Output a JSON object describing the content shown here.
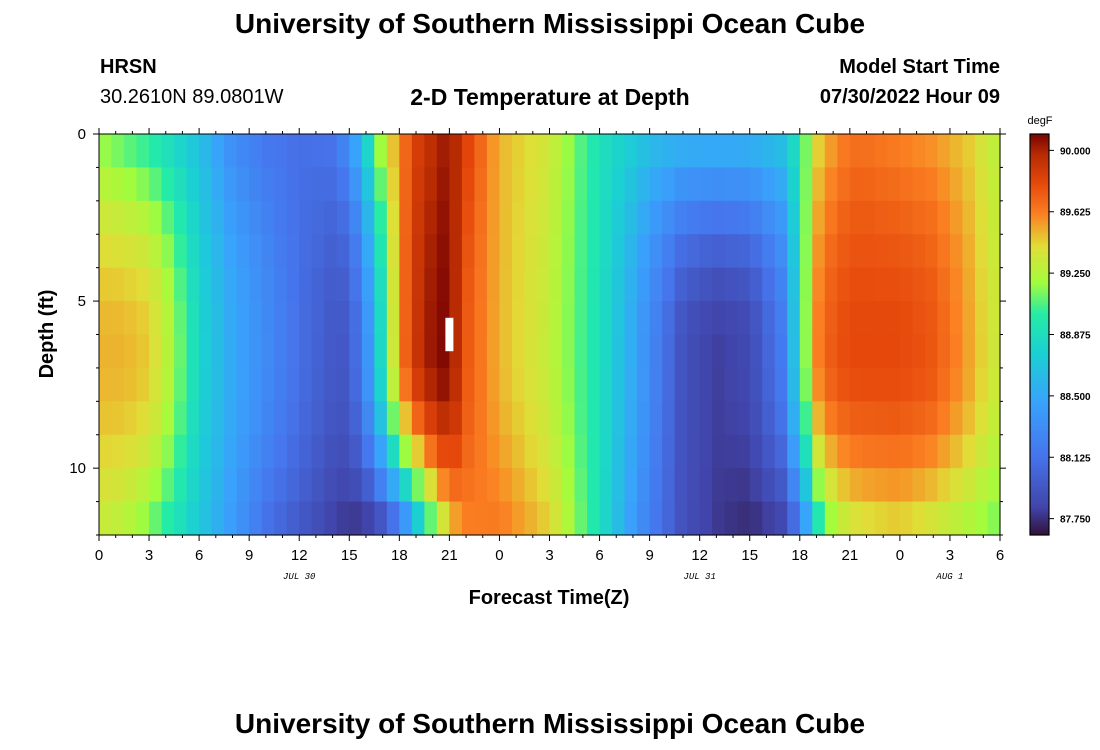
{
  "header": {
    "title": "University of Southern Mississippi Ocean Cube",
    "station": "HRSN",
    "coords": "30.2610N  89.0801W",
    "plot_title": "2-D Temperature at Depth",
    "start_label": "Model Start Time",
    "start_value": "07/30/2022 Hour 09"
  },
  "footer": {
    "title": "University of Southern Mississippi Ocean Cube"
  },
  "colors": {
    "background": "#ffffff",
    "marker": "#ffffff"
  },
  "chart_data": {
    "type": "heatmap",
    "title": "2-D Temperature at Depth",
    "xlabel": "Forecast Time(Z)",
    "ylabel": "Depth (ft)",
    "x_range_hours": [
      0,
      54
    ],
    "x_ticks": [
      {
        "h": 0,
        "label": "0"
      },
      {
        "h": 3,
        "label": "3"
      },
      {
        "h": 6,
        "label": "6"
      },
      {
        "h": 9,
        "label": "9"
      },
      {
        "h": 12,
        "label": "12"
      },
      {
        "h": 15,
        "label": "15"
      },
      {
        "h": 18,
        "label": "18"
      },
      {
        "h": 21,
        "label": "21"
      },
      {
        "h": 24,
        "label": "0"
      },
      {
        "h": 27,
        "label": "3"
      },
      {
        "h": 30,
        "label": "6"
      },
      {
        "h": 33,
        "label": "9"
      },
      {
        "h": 36,
        "label": "12"
      },
      {
        "h": 39,
        "label": "15"
      },
      {
        "h": 42,
        "label": "18"
      },
      {
        "h": 45,
        "label": "21"
      },
      {
        "h": 48,
        "label": "0"
      },
      {
        "h": 51,
        "label": "3"
      },
      {
        "h": 54,
        "label": "6"
      }
    ],
    "date_labels": [
      {
        "h": 12,
        "label": "JUL 30"
      },
      {
        "h": 36,
        "label": "JUL 31"
      },
      {
        "h": 51,
        "label": "AUG 1"
      }
    ],
    "y_range_ft": [
      0,
      12
    ],
    "y_ticks": [
      {
        "d": 0,
        "label": "0"
      },
      {
        "d": 5,
        "label": "5"
      },
      {
        "d": 10,
        "label": "10"
      }
    ],
    "colorbar": {
      "unit": "degF",
      "min": 87.65,
      "max": 90.1,
      "ticks": [
        90.0,
        89.625,
        89.25,
        88.875,
        88.5,
        88.125,
        87.75
      ],
      "tick_labels": [
        "90.000",
        "89.625",
        "89.250",
        "88.875",
        "88.500",
        "88.125",
        "87.750"
      ]
    },
    "field_model": {
      "hours": [
        0,
        1.5,
        3,
        4.5,
        6,
        8,
        10,
        12,
        14,
        15,
        16,
        17,
        18,
        19,
        20,
        21,
        22,
        24,
        27,
        30,
        32,
        33,
        35,
        37,
        39,
        41,
        42,
        43,
        44,
        45,
        46,
        48,
        50,
        52,
        54
      ],
      "surface_degF": [
        89.15,
        89.05,
        88.95,
        88.8,
        88.65,
        88.3,
        88.15,
        88.1,
        88.15,
        88.35,
        88.8,
        89.3,
        89.6,
        89.85,
        89.95,
        90.05,
        89.85,
        89.5,
        89.35,
        88.9,
        88.75,
        88.65,
        88.6,
        88.6,
        88.6,
        88.7,
        88.95,
        89.4,
        89.55,
        89.65,
        89.65,
        89.6,
        89.55,
        89.45,
        89.25
      ],
      "bottom_degF": [
        89.3,
        89.25,
        89.1,
        88.9,
        88.7,
        88.4,
        88.1,
        87.95,
        87.8,
        87.75,
        87.72,
        87.8,
        88.0,
        88.5,
        89.0,
        89.4,
        89.6,
        89.65,
        89.45,
        88.9,
        88.4,
        88.2,
        87.9,
        87.78,
        87.72,
        87.8,
        88.1,
        88.8,
        89.15,
        89.3,
        89.35,
        89.4,
        89.3,
        89.2,
        89.1
      ],
      "mid_max_degF": [
        89.5,
        89.5,
        89.45,
        89.2,
        88.8,
        88.5,
        88.3,
        88.1,
        87.95,
        87.95,
        88.3,
        88.9,
        89.6,
        89.9,
        90.05,
        90.1,
        89.75,
        89.5,
        89.3,
        88.9,
        88.5,
        88.3,
        87.9,
        87.8,
        87.85,
        88.2,
        88.9,
        89.6,
        89.75,
        89.8,
        89.8,
        89.8,
        89.75,
        89.55,
        89.3
      ],
      "note": "Column profile: surface value at 0 ft, peak value near 6.5 ft, bottom value at 12 ft"
    },
    "annotation": {
      "type": "marker",
      "h": 21,
      "depth_top_ft": 5.5,
      "depth_bottom_ft": 6.5
    }
  }
}
